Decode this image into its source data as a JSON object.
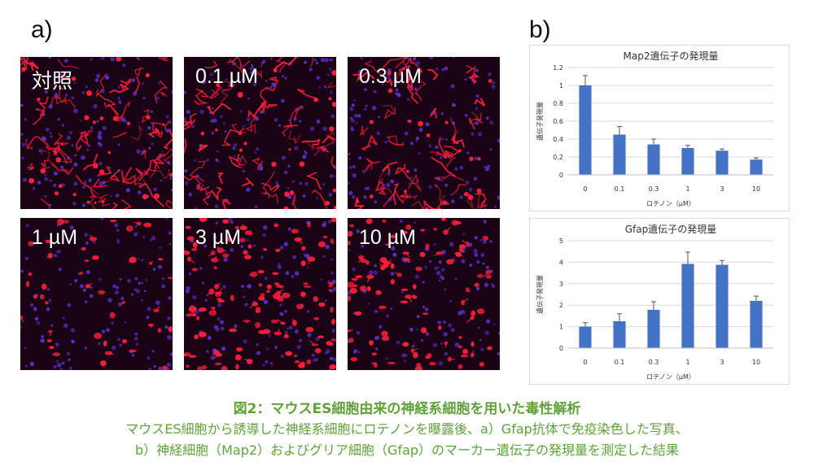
{
  "panels": {
    "a": "a)",
    "b": "b)"
  },
  "micrographs": [
    {
      "label": "対照",
      "density": 0.95,
      "style": "neurites"
    },
    {
      "label": "0.1 µM",
      "density": 0.8,
      "style": "neurites"
    },
    {
      "label": "0.3 µM",
      "density": 0.8,
      "style": "neurites"
    },
    {
      "label": "1 µM",
      "density": 0.55,
      "style": "sparse"
    },
    {
      "label": "3 µM",
      "density": 0.85,
      "style": "cells"
    },
    {
      "label": "10 µM",
      "density": 0.7,
      "style": "cells"
    }
  ],
  "colors": {
    "bar": "#4472c4",
    "image_bg": "#1a0314",
    "neurite": "#ff1f3d",
    "nuclei": "#5a35d8",
    "caption": "#5fa23a"
  },
  "chart_data": [
    {
      "type": "bar",
      "title": "Map2遺伝子の発現量",
      "xlabel": "ロテノン（μM）",
      "ylabel": "遺伝子発現量",
      "categories": [
        "0",
        "0.1",
        "0.3",
        "1",
        "3",
        "10"
      ],
      "values": [
        1.0,
        0.45,
        0.34,
        0.3,
        0.27,
        0.17
      ],
      "errors": [
        0.11,
        0.09,
        0.06,
        0.03,
        0.02,
        0.02
      ],
      "ylim": [
        0,
        1.2
      ],
      "yticks": [
        "0",
        "0.2",
        "0.4",
        "0.6",
        "0.8",
        "1",
        "1.2"
      ],
      "grid": true
    },
    {
      "type": "bar",
      "title": "Gfap遺伝子の発現量",
      "xlabel": "ロテノン（μM）",
      "ylabel": "遺伝子発現量",
      "categories": [
        "0",
        "0.1",
        "0.3",
        "1",
        "3",
        "10"
      ],
      "values": [
        1.0,
        1.25,
        1.78,
        3.92,
        3.88,
        2.2
      ],
      "errors": [
        0.18,
        0.35,
        0.38,
        0.55,
        0.2,
        0.22
      ],
      "ylim": [
        0,
        5
      ],
      "yticks": [
        "0",
        "1",
        "2",
        "3",
        "4",
        "5"
      ],
      "grid": true
    }
  ],
  "caption": {
    "title": "図2：マウスES細胞由来の神経系細胞を用いた毒性解析",
    "line1": "マウスES細胞から誘導した神経系細胞にロテノンを曝露後、a）Gfap抗体で免疫染色した写真、",
    "line2": "b）神経細胞（Map2）およびグリア細胞（Gfap）のマーカー遺伝子の発現量を測定した結果"
  }
}
